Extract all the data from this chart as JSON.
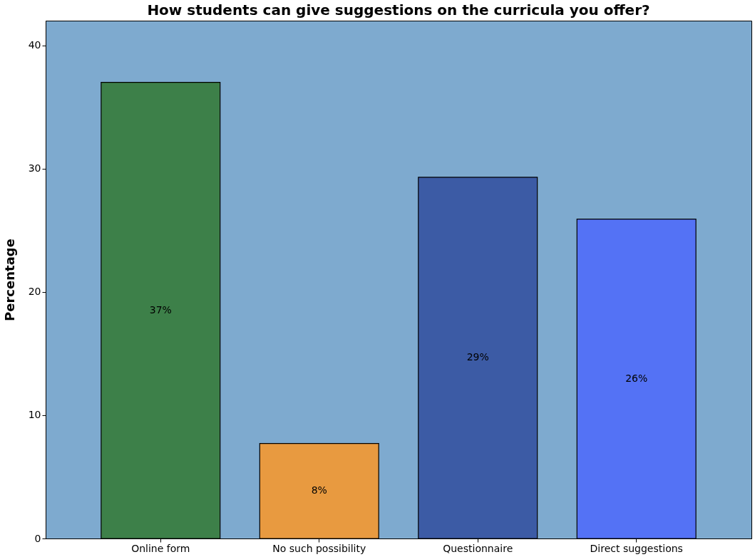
{
  "chart_data": {
    "type": "bar",
    "title": "How students can give suggestions on the curricula you offer?",
    "ylabel": "Percentage",
    "categories": [
      "Online form",
      "No such possibility",
      "Questionnaire",
      "Direct suggestions"
    ],
    "values": [
      37.0,
      7.7,
      29.3,
      25.9
    ],
    "value_labels": [
      "37%",
      "8%",
      "29%",
      "26%"
    ],
    "colors": [
      "#3d8049",
      "#e89a40",
      "#3c5ba5",
      "#5472f5"
    ],
    "ylim": [
      0,
      42
    ],
    "yticks": [
      0,
      10,
      20,
      30,
      40
    ],
    "grid": false,
    "legend": false
  }
}
